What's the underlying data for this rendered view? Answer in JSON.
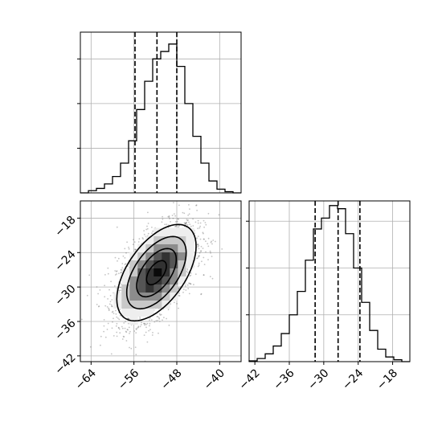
{
  "chart_data": [
    {
      "type": "histogram",
      "panel": "top-left marginal",
      "xlim": [
        -66,
        -36
      ],
      "ylim": [
        0,
        1.08
      ],
      "grid": true,
      "bin_edges": [
        -66,
        -64.5,
        -63,
        -61.5,
        -60,
        -58.5,
        -57,
        -55.5,
        -54,
        -52.5,
        -51,
        -49.5,
        -48,
        -46.5,
        -45,
        -43.5,
        -42,
        -40.5,
        -39,
        -37.5,
        -36
      ],
      "counts": [
        0.0,
        0.015,
        0.03,
        0.06,
        0.11,
        0.2,
        0.35,
        0.56,
        0.75,
        0.9,
        0.95,
        1.0,
        0.85,
        0.6,
        0.38,
        0.2,
        0.08,
        0.025,
        0.008,
        0.0
      ],
      "quantile_lines": [
        -55.8,
        -51.7,
        -48.0
      ],
      "x_ticks": [],
      "y_ticks": []
    },
    {
      "type": "histogram",
      "panel": "bottom-right marginal",
      "xlim": [
        -43,
        -15
      ],
      "ylim": [
        0,
        1.03
      ],
      "grid": true,
      "x_ticks": [
        -42,
        -36,
        -30,
        -24,
        -18
      ],
      "x_tick_labels": [
        "−42",
        "−36",
        "−30",
        "−24",
        "−18"
      ],
      "bin_edges": [
        -43,
        -41.6,
        -40.2,
        -38.8,
        -37.4,
        -36,
        -34.6,
        -33.2,
        -31.8,
        -30.4,
        -29,
        -27.6,
        -26.2,
        -24.8,
        -23.4,
        -22,
        -20.6,
        -19.2,
        -17.8,
        -16.4,
        -15
      ],
      "counts": [
        0.005,
        0.02,
        0.05,
        0.1,
        0.18,
        0.3,
        0.45,
        0.65,
        0.85,
        0.92,
        1.0,
        0.98,
        0.82,
        0.6,
        0.38,
        0.2,
        0.08,
        0.03,
        0.012,
        0.0
      ],
      "quantile_lines": [
        -31.5,
        -27.5,
        -23.7
      ],
      "y_ticks": []
    },
    {
      "type": "heatmap",
      "panel": "bottom-left joint density",
      "xlim": [
        -66,
        -36
      ],
      "ylim": [
        -43,
        -15
      ],
      "grid": true,
      "x_ticks": [
        -64,
        -56,
        -48,
        -40
      ],
      "x_tick_labels": [
        "−64",
        "−56",
        "−48",
        "−40"
      ],
      "y_ticks": [
        -42,
        -36,
        -30,
        -24,
        -18
      ],
      "y_tick_labels": [
        "−42",
        "−36",
        "−30",
        "−24",
        "−18"
      ],
      "mean": [
        -51.8,
        -27.5
      ],
      "std": [
        3.7,
        4.2
      ],
      "correlation": 0.55,
      "contours_sigma": [
        0.5,
        1.0,
        1.5,
        2.0
      ]
    }
  ]
}
